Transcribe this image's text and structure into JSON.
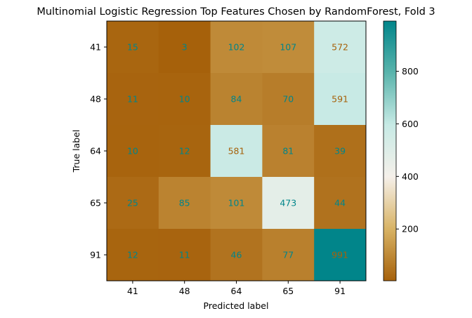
{
  "chart_data": {
    "type": "heatmap",
    "title": "Multinomial Logistic Regression Top Features Chosen by RandomForest, Fold 3",
    "xlabel": "Predicted label",
    "ylabel": "True label",
    "x_categories": [
      "41",
      "48",
      "64",
      "65",
      "91"
    ],
    "y_categories": [
      "41",
      "48",
      "64",
      "65",
      "91"
    ],
    "values": [
      [
        15,
        3,
        102,
        107,
        572
      ],
      [
        11,
        10,
        84,
        70,
        591
      ],
      [
        10,
        12,
        581,
        81,
        39
      ],
      [
        25,
        85,
        101,
        473,
        44
      ],
      [
        12,
        11,
        46,
        77,
        991
      ]
    ],
    "colorbar": {
      "min": 3,
      "max": 991,
      "ticks": [
        200,
        400,
        600,
        800
      ],
      "colormap": "BrBG",
      "colors": [
        "#a6610b",
        "#d8b365",
        "#f5f0ea",
        "#c7eae5",
        "#5ab4ac",
        "#01858a"
      ]
    },
    "text_colors": {
      "on_dark": "#a6610b",
      "on_light": "#01858a"
    },
    "grid": false
  }
}
